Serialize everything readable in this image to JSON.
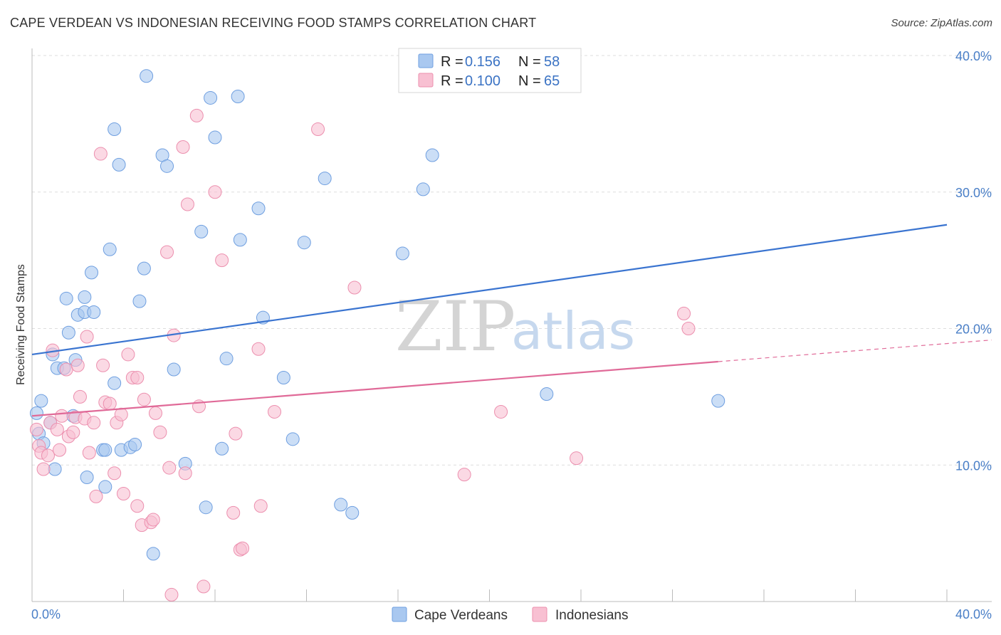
{
  "header": {
    "title": "CAPE VERDEAN VS INDONESIAN RECEIVING FOOD STAMPS CORRELATION CHART",
    "source": "Source: ZipAtlas.com"
  },
  "watermark": {
    "zip": "ZIP",
    "atlas": "atlas"
  },
  "legend": {
    "rows": [
      {
        "r_label": "R =",
        "r_value": "0.156",
        "n_label": "N =",
        "n_value": "58",
        "color": "#a9c8f0",
        "stroke": "#6f9fe0"
      },
      {
        "r_label": "R =",
        "r_value": "0.100",
        "n_label": "N =",
        "n_value": "65",
        "color": "#f8c0d2",
        "stroke": "#ec8fae"
      }
    ]
  },
  "bottom_legend": [
    "Cape Verdeans",
    "Indonesians"
  ],
  "chart_data": {
    "type": "scatter",
    "title": "CAPE VERDEAN VS INDONESIAN RECEIVING FOOD STAMPS CORRELATION CHART",
    "ylabel": "Receiving Food Stamps",
    "xlabel": "",
    "xlim": [
      0,
      40
    ],
    "ylim": [
      0,
      40
    ],
    "x_tick_labels": [
      "0.0%",
      "40.0%"
    ],
    "y_tick_labels": [
      "10.0%",
      "20.0%",
      "30.0%",
      "40.0%"
    ],
    "y_ticks": [
      10,
      20,
      30,
      40
    ],
    "grid": true,
    "legend_position": "top-center",
    "colors": {
      "blue": "#3a74d0",
      "pink": "#e06a98"
    },
    "series": [
      {
        "name": "Cape Verdeans",
        "color": "#a9c8f0",
        "stroke": "#6f9fe0",
        "trend": {
          "x": [
            0,
            40
          ],
          "y": [
            18.1,
            27.6
          ],
          "dashed_from": null
        },
        "points": [
          [
            0.2,
            13.8
          ],
          [
            0.4,
            14.7
          ],
          [
            0.3,
            12.3
          ],
          [
            0.5,
            11.6
          ],
          [
            0.8,
            13.1
          ],
          [
            0.9,
            18.1
          ],
          [
            1.0,
            9.7
          ],
          [
            1.1,
            17.1
          ],
          [
            1.4,
            17.1
          ],
          [
            1.5,
            22.2
          ],
          [
            1.6,
            19.7
          ],
          [
            1.8,
            13.6
          ],
          [
            1.9,
            17.7
          ],
          [
            2.0,
            21.0
          ],
          [
            2.3,
            21.2
          ],
          [
            2.3,
            22.3
          ],
          [
            2.4,
            9.1
          ],
          [
            2.6,
            24.1
          ],
          [
            2.7,
            21.2
          ],
          [
            3.1,
            11.1
          ],
          [
            3.2,
            11.1
          ],
          [
            3.2,
            8.4
          ],
          [
            3.4,
            25.8
          ],
          [
            3.6,
            34.6
          ],
          [
            3.6,
            16.0
          ],
          [
            3.8,
            32.0
          ],
          [
            3.9,
            11.1
          ],
          [
            4.3,
            11.3
          ],
          [
            4.5,
            11.5
          ],
          [
            4.7,
            22.0
          ],
          [
            4.9,
            24.4
          ],
          [
            5.0,
            38.5
          ],
          [
            5.3,
            3.5
          ],
          [
            5.7,
            32.7
          ],
          [
            5.9,
            31.9
          ],
          [
            6.2,
            17.0
          ],
          [
            6.7,
            10.1
          ],
          [
            7.4,
            27.1
          ],
          [
            7.6,
            6.9
          ],
          [
            7.8,
            36.9
          ],
          [
            8.0,
            34.0
          ],
          [
            8.3,
            11.2
          ],
          [
            8.5,
            17.8
          ],
          [
            9.0,
            37.0
          ],
          [
            9.1,
            26.5
          ],
          [
            9.9,
            28.8
          ],
          [
            10.1,
            20.8
          ],
          [
            11.0,
            16.4
          ],
          [
            11.4,
            11.9
          ],
          [
            11.9,
            26.3
          ],
          [
            12.8,
            31.0
          ],
          [
            13.5,
            7.1
          ],
          [
            14.0,
            6.5
          ],
          [
            16.2,
            25.5
          ],
          [
            17.1,
            30.2
          ],
          [
            17.5,
            32.7
          ],
          [
            22.5,
            15.2
          ],
          [
            30.0,
            14.7
          ]
        ]
      },
      {
        "name": "Indonesians",
        "color": "#f8c0d2",
        "stroke": "#ec8fae",
        "trend": {
          "x": [
            0,
            40
          ],
          "y": [
            13.6,
            18.9
          ],
          "dashed_from": 30.0
        },
        "points": [
          [
            0.2,
            12.6
          ],
          [
            0.3,
            11.4
          ],
          [
            0.4,
            10.9
          ],
          [
            0.5,
            9.7
          ],
          [
            0.7,
            10.7
          ],
          [
            0.8,
            13.1
          ],
          [
            0.9,
            18.4
          ],
          [
            1.1,
            12.6
          ],
          [
            1.2,
            11.1
          ],
          [
            1.3,
            13.6
          ],
          [
            1.5,
            17.0
          ],
          [
            1.6,
            12.1
          ],
          [
            1.8,
            12.4
          ],
          [
            1.9,
            13.5
          ],
          [
            2.0,
            17.3
          ],
          [
            2.1,
            15.0
          ],
          [
            2.3,
            13.4
          ],
          [
            2.4,
            19.4
          ],
          [
            2.5,
            10.9
          ],
          [
            2.7,
            13.1
          ],
          [
            2.8,
            7.7
          ],
          [
            3.0,
            32.8
          ],
          [
            3.1,
            17.3
          ],
          [
            3.2,
            14.6
          ],
          [
            3.4,
            14.5
          ],
          [
            3.6,
            9.4
          ],
          [
            3.7,
            13.1
          ],
          [
            3.9,
            13.7
          ],
          [
            4.0,
            7.9
          ],
          [
            4.2,
            18.1
          ],
          [
            4.4,
            16.4
          ],
          [
            4.6,
            16.4
          ],
          [
            4.6,
            7.0
          ],
          [
            4.8,
            5.6
          ],
          [
            4.9,
            14.8
          ],
          [
            5.2,
            5.8
          ],
          [
            5.3,
            6.0
          ],
          [
            5.4,
            13.8
          ],
          [
            5.6,
            12.4
          ],
          [
            5.9,
            25.6
          ],
          [
            6.0,
            9.8
          ],
          [
            6.1,
            0.5
          ],
          [
            6.2,
            19.5
          ],
          [
            6.6,
            33.3
          ],
          [
            6.7,
            9.4
          ],
          [
            6.8,
            29.1
          ],
          [
            7.2,
            35.6
          ],
          [
            7.3,
            14.3
          ],
          [
            7.5,
            1.1
          ],
          [
            8.0,
            30.0
          ],
          [
            8.3,
            25.0
          ],
          [
            8.8,
            6.5
          ],
          [
            8.9,
            12.3
          ],
          [
            9.1,
            3.8
          ],
          [
            9.2,
            3.9
          ],
          [
            9.9,
            18.5
          ],
          [
            10.0,
            7.0
          ],
          [
            10.6,
            13.9
          ],
          [
            12.5,
            34.6
          ],
          [
            14.1,
            23.0
          ],
          [
            18.9,
            9.3
          ],
          [
            20.5,
            13.9
          ],
          [
            23.8,
            10.5
          ],
          [
            28.5,
            21.1
          ],
          [
            28.7,
            20.0
          ]
        ]
      }
    ]
  }
}
